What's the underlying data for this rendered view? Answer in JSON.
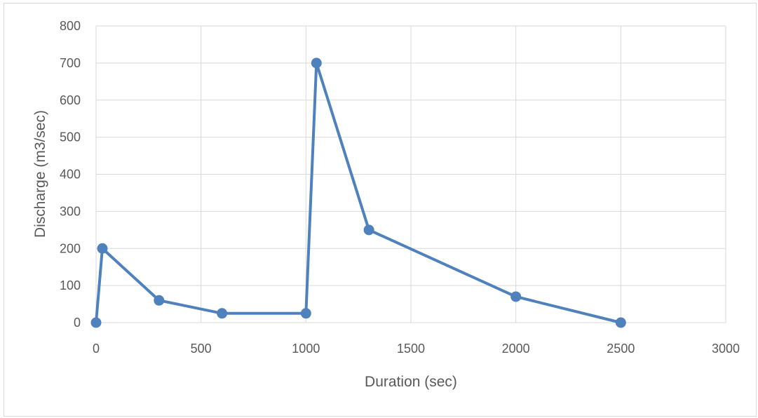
{
  "chart_data": {
    "type": "scatter",
    "title": "",
    "xlabel": "Duration (sec)",
    "ylabel": "Discharge (m3/sec)",
    "xlim": [
      0,
      3000
    ],
    "ylim": [
      0,
      800
    ],
    "xticks": [
      0,
      500,
      1000,
      1500,
      2000,
      2500,
      3000
    ],
    "yticks": [
      0,
      100,
      200,
      300,
      400,
      500,
      600,
      700,
      800
    ],
    "grid": true,
    "legend": "none",
    "series": [
      {
        "color": "#4f81bd",
        "marker": "circle",
        "line": "straight",
        "points": [
          {
            "x": 0,
            "y": 0
          },
          {
            "x": 30,
            "y": 200
          },
          {
            "x": 300,
            "y": 60
          },
          {
            "x": 600,
            "y": 25
          },
          {
            "x": 1000,
            "y": 25
          },
          {
            "x": 1050,
            "y": 700
          },
          {
            "x": 1300,
            "y": 250
          },
          {
            "x": 2000,
            "y": 70
          },
          {
            "x": 2500,
            "y": 0
          }
        ]
      }
    ]
  },
  "colors": {
    "gridline": "#d9d9d9",
    "series": "#4f81bd",
    "text": "#595959"
  }
}
